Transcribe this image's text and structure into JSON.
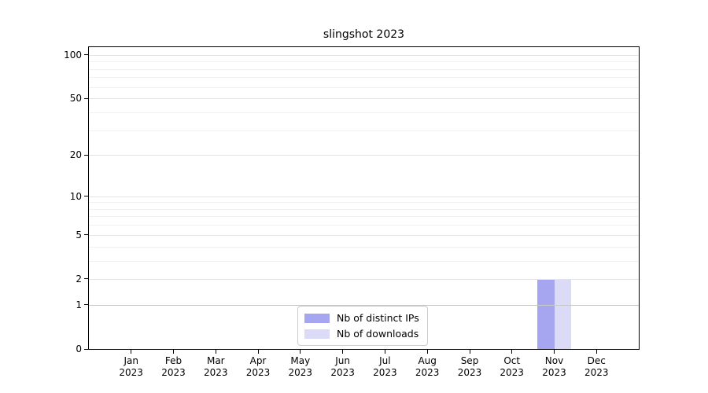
{
  "title": "slingshot 2023",
  "legend": {
    "items": [
      {
        "label": "Nb of distinct IPs"
      },
      {
        "label": "Nb of downloads"
      }
    ]
  },
  "chart_data": {
    "type": "bar",
    "title": "slingshot 2023",
    "categories": [
      "Jan 2023",
      "Feb 2023",
      "Mar 2023",
      "Apr 2023",
      "May 2023",
      "Jun 2023",
      "Jul 2023",
      "Aug 2023",
      "Sep 2023",
      "Oct 2023",
      "Nov 2023",
      "Dec 2023"
    ],
    "series": [
      {
        "name": "Nb of distinct IPs",
        "color": "#a6a6f0",
        "values": [
          0,
          0,
          0,
          0,
          0,
          0,
          0,
          0,
          0,
          0,
          2,
          0
        ]
      },
      {
        "name": "Nb of downloads",
        "color": "#dbdbf8",
        "values": [
          0,
          0,
          0,
          0,
          0,
          0,
          0,
          0,
          0,
          0,
          2,
          0
        ]
      }
    ],
    "y_scale": "log1p",
    "ylim": [
      0,
      113
    ],
    "y_major_ticks": [
      0,
      1,
      2,
      5,
      10,
      20,
      50,
      100
    ],
    "y_minor_ticks": [
      3,
      4,
      6,
      7,
      8,
      9,
      30,
      40,
      60,
      70,
      80,
      90
    ],
    "grid": "both",
    "legend_position": "lower center",
    "colors": {
      "grid_major": "#e3e3e3",
      "grid_minor": "#f1f1f1",
      "grid_unit_line": "#c8c8c8",
      "axis": "#000000",
      "background": "#ffffff"
    }
  }
}
